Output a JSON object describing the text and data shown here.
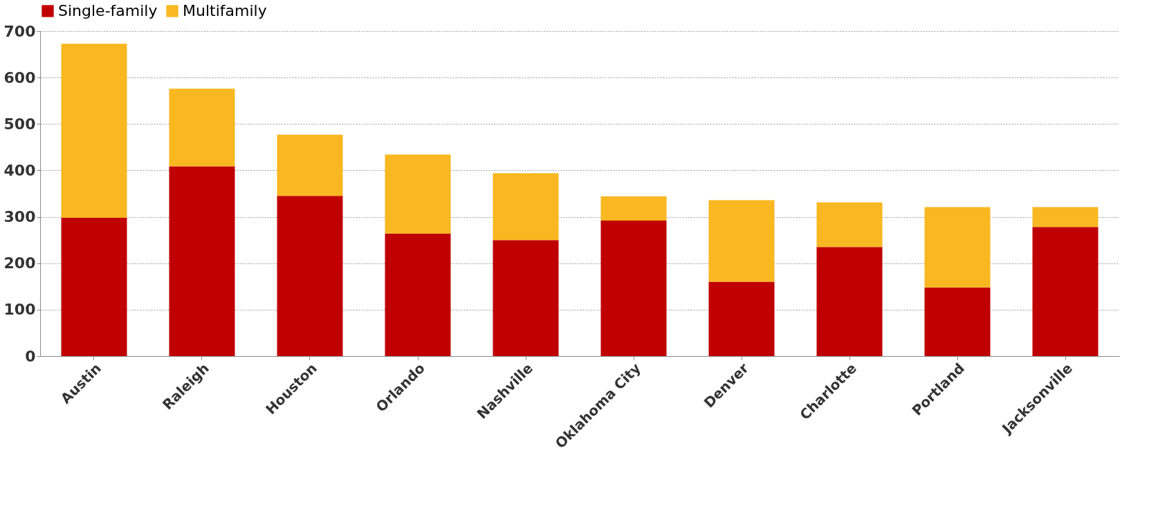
{
  "chart_data": {
    "type": "bar",
    "stacked": true,
    "categories": [
      "Austin",
      "Raleigh",
      "Houston",
      "Orlando",
      "Nashville",
      "Oklahoma City",
      "Denver",
      "Charlotte",
      "Portland",
      "Jacksonville"
    ],
    "series": [
      {
        "name": "Single-family",
        "color": "#c00000",
        "values": [
          298,
          409,
          345,
          264,
          250,
          292,
          160,
          235,
          148,
          278
        ]
      },
      {
        "name": "Multifamily",
        "color": "#f9b821",
        "values": [
          375,
          167,
          132,
          170,
          144,
          52,
          176,
          96,
          173,
          43
        ]
      }
    ],
    "ylim": [
      0,
      700
    ],
    "yticks": [
      0,
      100,
      200,
      300,
      400,
      500,
      600,
      700
    ],
    "grid": "y",
    "legend": "top"
  }
}
